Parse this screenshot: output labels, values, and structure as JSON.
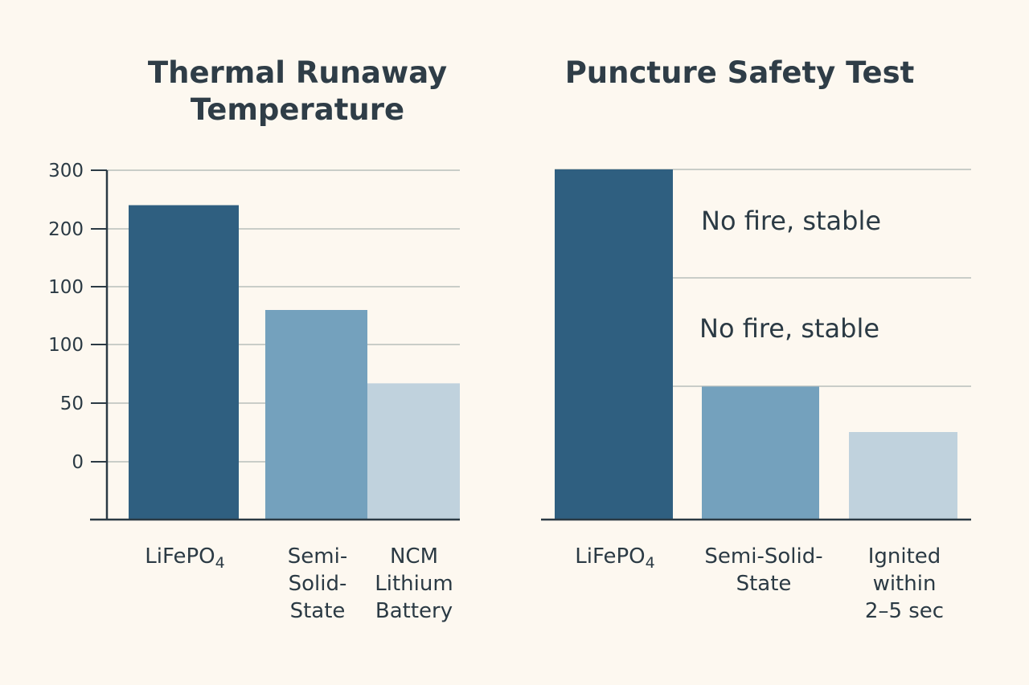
{
  "colors": {
    "bar_dark": "#2f5f80",
    "bar_mid": "#74a1bd",
    "bar_light": "#c0d2dd",
    "grid": "#c9cdc8",
    "axis": "#2b3a44"
  },
  "chart_data": [
    {
      "type": "bar",
      "title": "Thermal Runaway Temperature",
      "categories": [
        "LiFePO",
        "Semi-Solid-State",
        "NCM Lithium Battery"
      ],
      "category_display": [
        "LiFePO",
        "Semi-\nSolid-\nState",
        "NCM\nLithium\nBattery"
      ],
      "subscripts": [
        "4",
        "",
        ""
      ],
      "y_tick_labels": [
        "300",
        "200",
        "100",
        "100",
        "50",
        "0"
      ],
      "values": [
        270,
        180,
        117
      ],
      "ylim": [
        0,
        300
      ],
      "grid": true
    },
    {
      "type": "bar",
      "title": "Puncture Safety Test",
      "categories": [
        "LiFePO",
        "Semi-Solid-State",
        "Ignited within 2–5 sec"
      ],
      "category_display": [
        "LiFePO",
        "Semi-Solid-\nState",
        "Ignited\nwithin\n2–5 sec"
      ],
      "subscripts": [
        "4",
        "",
        ""
      ],
      "values": [
        100,
        38,
        25
      ],
      "ylim": [
        0,
        100
      ],
      "annotations": [
        "No fire, stable",
        "No fire, stable"
      ],
      "grid": true
    }
  ]
}
